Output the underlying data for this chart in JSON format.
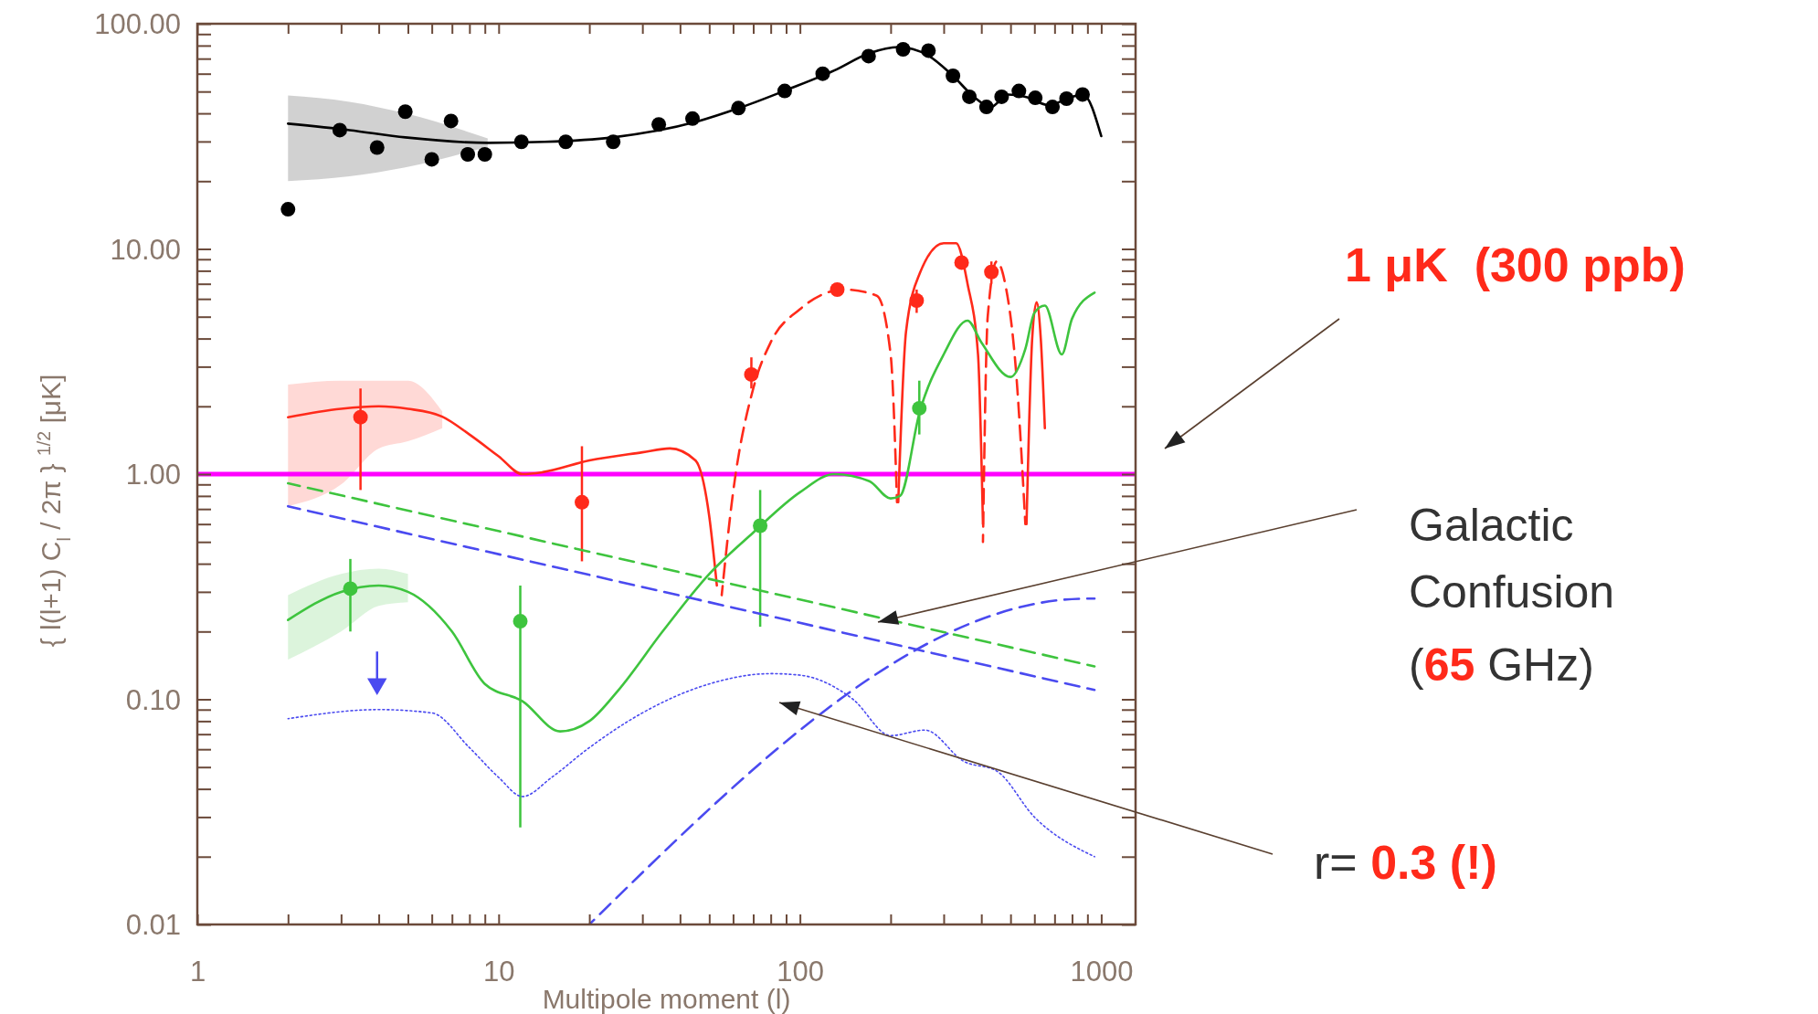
{
  "chart_data": {
    "type": "line",
    "xlabel": "Multipole moment (l)",
    "ylabel": "{ l(l+1) C$_{l}$ / 2π } $^{1/2}$   [μK]",
    "log": "xy",
    "grid": false,
    "xlim": [
      1,
      1300
    ],
    "ylim": [
      0.01,
      100
    ],
    "xticks": [
      1,
      {
        "value": 2,
        "label": null
      },
      {
        "value": 3,
        "label": null
      },
      {
        "value": 4,
        "label": null
      },
      {
        "value": 5,
        "label": null
      },
      {
        "value": 6,
        "label": null
      },
      {
        "value": 7,
        "label": null
      },
      {
        "value": 8,
        "label": null
      },
      {
        "value": 9,
        "label": null
      },
      10,
      {
        "value": 20,
        "label": null
      },
      {
        "value": 30,
        "label": null
      },
      {
        "value": 40,
        "label": null
      },
      {
        "value": 50,
        "label": null
      },
      {
        "value": 60,
        "label": null
      },
      {
        "value": 70,
        "label": null
      },
      {
        "value": 80,
        "label": null
      },
      {
        "value": 90,
        "label": null
      },
      100,
      {
        "value": 200,
        "label": null
      },
      {
        "value": 300,
        "label": null
      },
      {
        "value": 400,
        "label": null
      },
      {
        "value": 500,
        "label": null
      },
      {
        "value": 600,
        "label": null
      },
      {
        "value": 700,
        "label": null
      },
      {
        "value": 800,
        "label": null
      },
      {
        "value": 900,
        "label": null
      },
      1000
    ],
    "yticks": [
      {
        "value": 0.01,
        "label": "0.01"
      },
      {
        "value": 0.02,
        "label": null
      },
      {
        "value": 0.03,
        "label": null
      },
      {
        "value": 0.04,
        "label": null
      },
      {
        "value": 0.05,
        "label": null
      },
      {
        "value": 0.06,
        "label": null
      },
      {
        "value": 0.07,
        "label": null
      },
      {
        "value": 0.08,
        "label": null
      },
      {
        "value": 0.09,
        "label": null
      },
      {
        "value": 0.1,
        "label": "0.10"
      },
      {
        "value": 0.2,
        "label": null
      },
      {
        "value": 0.3,
        "label": null
      },
      {
        "value": 0.4,
        "label": null
      },
      {
        "value": 0.5,
        "label": null
      },
      {
        "value": 0.6,
        "label": null
      },
      {
        "value": 0.7,
        "label": null
      },
      {
        "value": 0.8,
        "label": null
      },
      {
        "value": 0.9,
        "label": null
      },
      {
        "value": 1,
        "label": "1.00"
      },
      {
        "value": 2,
        "label": null
      },
      {
        "value": 3,
        "label": null
      },
      {
        "value": 4,
        "label": null
      },
      {
        "value": 5,
        "label": null
      },
      {
        "value": 6,
        "label": null
      },
      {
        "value": 7,
        "label": null
      },
      {
        "value": 8,
        "label": null
      },
      {
        "value": 9,
        "label": null
      },
      {
        "value": 10,
        "label": "10.00"
      },
      {
        "value": 20,
        "label": null
      },
      {
        "value": 30,
        "label": null
      },
      {
        "value": 40,
        "label": null
      },
      {
        "value": 50,
        "label": null
      },
      {
        "value": 60,
        "label": null
      },
      {
        "value": 70,
        "label": null
      },
      {
        "value": 80,
        "label": null
      },
      {
        "value": 90,
        "label": null
      },
      {
        "value": 100,
        "label": "100.00"
      }
    ],
    "ref_lines": [
      {
        "axis": "y",
        "value": 1,
        "color": "#ff00ff"
      }
    ],
    "annotations": [
      "1 μK  (300 ppb)",
      "Galactic",
      "Confusion",
      "(",
      "65",
      " GHz)",
      "r=",
      " 0.3 (!)"
    ],
    "series": [
      {
        "type": "line",
        "color": "#000000",
        "line_style": "solid",
        "x": [
          2,
          3.2,
          4.9,
          9.2,
          14.2,
          24,
          45,
          64,
          91,
          130,
          170,
          212,
          265,
          322,
          378,
          430,
          490,
          560,
          670,
          800,
          870,
          1000
        ],
        "values": [
          36,
          33.7,
          31.3,
          29.6,
          29.9,
          31.3,
          36.6,
          42.6,
          51,
          62,
          74,
          78.8,
          72.6,
          58.7,
          47.4,
          42.7,
          48.5,
          47.4,
          43.5,
          47.4,
          48.5,
          31.7
        ],
        "lower": [
          20,
          21,
          23,
          28.5,
          null,
          null,
          null,
          null,
          null,
          null,
          null,
          null,
          null,
          null,
          null,
          null,
          null,
          null,
          null,
          null,
          null,
          null
        ],
        "upper": [
          48,
          45,
          40,
          31,
          null,
          null,
          null,
          null,
          null,
          null,
          null,
          null,
          null,
          null,
          null,
          null,
          null,
          null,
          null,
          null,
          null,
          null
        ]
      },
      {
        "type": "scatter",
        "color": "#000000",
        "marker": "circle",
        "x": [
          2,
          2.97,
          3.95,
          4.9,
          6,
          6.95,
          7.9,
          9,
          11.9,
          16.7,
          24,
          34,
          44,
          62.5,
          89,
          119,
          169,
          220,
          267,
          322,
          365,
          416,
          467,
          533,
          604,
          689,
          767,
          867
        ],
        "values": [
          15,
          33.7,
          28.2,
          40.7,
          25,
          37,
          26.3,
          26.3,
          29.9,
          29.9,
          29.9,
          35.7,
          37.9,
          42.2,
          50.3,
          60,
          71.8,
          77,
          76,
          58.7,
          47.4,
          42.7,
          47.4,
          50.3,
          46.9,
          42.7,
          46.5,
          48.5
        ]
      },
      {
        "type": "line",
        "color": "#ff2a1a",
        "line_style": "solid",
        "x": [
          2,
          3,
          4,
          5,
          6.5,
          8,
          10,
          12,
          14,
          20,
          30,
          37,
          45,
          50,
          53
        ],
        "values": [
          1.79,
          1.95,
          2,
          1.95,
          1.8,
          1.5,
          1.2,
          1,
          1.02,
          1.15,
          1.25,
          1.3,
          1.15,
          0.65,
          0.32
        ],
        "lower": [
          0.72,
          0.9,
          1.3,
          1.4,
          1.6,
          null,
          null,
          null,
          null,
          null,
          null,
          null,
          null,
          null,
          null
        ],
        "upper": [
          2.5,
          2.6,
          2.6,
          2.6,
          1.9,
          null,
          null,
          null,
          null,
          null,
          null,
          null,
          null,
          null,
          null
        ]
      },
      {
        "type": "line",
        "color": "#ff2a1a",
        "line_style": "dashed",
        "x": [
          55,
          60,
          70,
          80,
          100,
          140,
          180,
          200,
          210
        ],
        "values": [
          0.29,
          0.83,
          2.4,
          3.85,
          5.4,
          6.6,
          6.2,
          3.4,
          0.75
        ]
      },
      {
        "type": "line",
        "color": "#ff2a1a",
        "line_style": "solid",
        "x": [
          212,
          225,
          250,
          300,
          330,
          360,
          390,
          405
        ],
        "values": [
          0.75,
          4.3,
          7.8,
          10.6,
          10.6,
          7,
          3.4,
          0.6
        ]
      },
      {
        "type": "line",
        "color": "#ff2a1a",
        "line_style": "dashed",
        "x": [
          405,
          420,
          450,
          480,
          520,
          560
        ],
        "values": [
          0.5,
          5,
          8.8,
          7,
          3,
          0.6
        ]
      },
      {
        "type": "line",
        "color": "#ff2a1a",
        "line_style": "solid",
        "x": [
          565,
          590,
          610,
          630,
          650
        ],
        "values": [
          0.6,
          4,
          5.8,
          4,
          1.6
        ]
      },
      {
        "type": "scatter",
        "color": "#ff2a1a",
        "marker": "circle",
        "x": [
          3.48,
          18.9,
          69,
          133,
          244,
          344,
          432
        ],
        "values": [
          1.79,
          0.75,
          2.77,
          6.6,
          5.9,
          8.7,
          7.9
        ],
        "errors": [
          [
            0.85,
            2.4
          ],
          [
            0.41,
            1.33
          ],
          [
            2.4,
            3.3
          ],
          null,
          [
            5.2,
            6.6
          ],
          null,
          [
            7,
            8.8
          ]
        ]
      },
      {
        "type": "line",
        "color": "#3ec43e",
        "line_style": "solid",
        "x": [
          2,
          3,
          4,
          5,
          7,
          9,
          12,
          16,
          20,
          25,
          35,
          50,
          70,
          100,
          130,
          170,
          200,
          215,
          250,
          300,
          360,
          400,
          500,
          560,
          600,
          650,
          740,
          800,
          950
        ],
        "values": [
          0.225,
          0.3,
          0.32,
          0.3,
          0.2,
          0.117,
          0.098,
          0.072,
          0.08,
          0.11,
          0.2,
          0.36,
          0.55,
          0.83,
          1,
          0.93,
          0.78,
          0.8,
          1.9,
          3.4,
          4.8,
          3.85,
          2.7,
          3.6,
          5.2,
          5.6,
          3.4,
          4.9,
          6.4
        ],
        "lower": [
          0.15,
          0.2,
          0.26,
          0.27,
          null,
          null,
          null,
          null,
          null,
          null,
          null,
          null,
          null,
          null,
          null,
          null,
          null,
          null,
          null,
          null,
          null,
          null,
          null,
          null,
          null,
          null,
          null,
          null,
          null
        ],
        "upper": [
          0.29,
          0.36,
          0.38,
          0.36,
          null,
          null,
          null,
          null,
          null,
          null,
          null,
          null,
          null,
          null,
          null,
          null,
          null,
          null,
          null,
          null,
          null,
          null,
          null,
          null,
          null,
          null,
          null,
          null,
          null
        ]
      },
      {
        "type": "scatter",
        "color": "#3ec43e",
        "marker": "circle",
        "x": [
          3.22,
          11.8,
          73.8,
          249
        ],
        "values": [
          0.31,
          0.222,
          0.59,
          1.96
        ],
        "errors": [
          [
            0.2,
            0.42
          ],
          [
            0.027,
            0.32
          ],
          [
            0.21,
            0.85
          ],
          [
            1.5,
            2.6
          ]
        ]
      },
      {
        "type": "line",
        "color": "#3ec43e",
        "line_style": "dashed",
        "x": [
          2,
          950
        ],
        "values": [
          0.91,
          0.14
        ]
      },
      {
        "type": "line",
        "color": "#4a4af0",
        "line_style": "dashed",
        "x": [
          2,
          950
        ],
        "values": [
          0.72,
          0.11
        ]
      },
      {
        "type": "line",
        "color": "#4a4af0",
        "line_style": "dashed",
        "x": [
          20,
          900,
          950
        ],
        "values": [
          0.01,
          0.28,
          0.28
        ]
      },
      {
        "type": "line",
        "color": "#4a4af0",
        "line_style": "dotted",
        "x": [
          2,
          4,
          6,
          8,
          10,
          12,
          15,
          20,
          30,
          50,
          80,
          100,
          150,
          200,
          260,
          350,
          450,
          600,
          950
        ],
        "values": [
          0.082,
          0.09,
          0.087,
          0.061,
          0.045,
          0.037,
          0.045,
          0.061,
          0.087,
          0.117,
          0.13,
          0.128,
          0.1,
          0.069,
          0.073,
          0.053,
          0.048,
          0.03,
          0.02
        ]
      },
      {
        "type": "scatter",
        "color": "#4a4af0",
        "marker": "triangle",
        "x": [
          3.95
        ],
        "values": [
          0.117
        ],
        "errors": [
          [
            0.117,
            0.163
          ]
        ]
      }
    ]
  }
}
